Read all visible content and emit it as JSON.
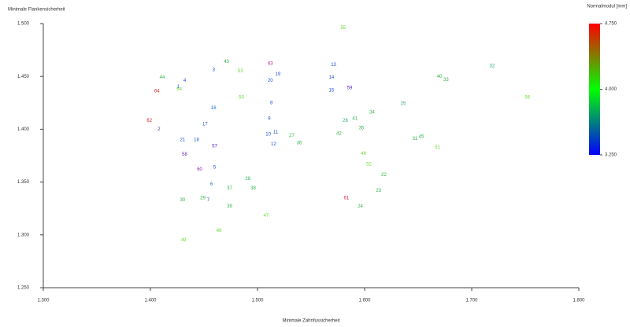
{
  "chart_data": {
    "type": "scatter",
    "xlabel": "Minimale Zahnfussicherheit",
    "ylabel": "Minimale Flankensicherheit",
    "xlim": [
      1.3,
      1.8
    ],
    "ylim": [
      1.25,
      1.5
    ],
    "xticks": [
      {
        "value": 1.3,
        "label": "1.300"
      },
      {
        "value": 1.4,
        "label": "1.400"
      },
      {
        "value": 1.5,
        "label": "1.500"
      },
      {
        "value": 1.6,
        "label": "1.600"
      },
      {
        "value": 1.7,
        "label": "1.700"
      },
      {
        "value": 1.8,
        "label": "1.800"
      }
    ],
    "yticks": [
      {
        "value": 1.25,
        "label": "1.250"
      },
      {
        "value": 1.3,
        "label": "1.300"
      },
      {
        "value": 1.35,
        "label": "1.350"
      },
      {
        "value": 1.4,
        "label": "1.400"
      },
      {
        "value": 1.45,
        "label": "1.450"
      },
      {
        "value": 1.5,
        "label": "1.500"
      }
    ],
    "labels": [
      "55",
      "43",
      "63",
      "3",
      "53",
      "13",
      "32",
      "19",
      "20",
      "14",
      "40",
      "33",
      "44",
      "4",
      "1",
      "54",
      "64",
      "15",
      "59",
      "50",
      "8",
      "25",
      "56",
      "16",
      "34",
      "62",
      "9",
      "41",
      "26",
      "17",
      "35",
      "2",
      "11",
      "10",
      "42",
      "27",
      "31",
      "45",
      "21",
      "18",
      "36",
      "12",
      "57",
      "51",
      "46",
      "58",
      "52",
      "5",
      "60",
      "22",
      "28",
      "6",
      "37",
      "38",
      "23",
      "61",
      "29",
      "7",
      "30",
      "39",
      "24",
      "47",
      "48",
      "49"
    ],
    "x": [
      1.58,
      1.471,
      1.512,
      1.459,
      1.484,
      1.571,
      1.719,
      1.519,
      1.512,
      1.569,
      1.67,
      1.676,
      1.411,
      1.432,
      1.426,
      1.427,
      1.406,
      1.569,
      1.586,
      1.485,
      1.513,
      1.636,
      1.752,
      1.459,
      1.607,
      1.399,
      1.511,
      1.591,
      1.582,
      1.451,
      1.597,
      1.408,
      1.517,
      1.51,
      1.576,
      1.532,
      1.647,
      1.653,
      1.43,
      1.443,
      1.539,
      1.515,
      1.46,
      1.668,
      1.599,
      1.432,
      1.604,
      1.46,
      1.446,
      1.618,
      1.491,
      1.457,
      1.474,
      1.496,
      1.613,
      1.583,
      1.449,
      1.454,
      1.43,
      1.474,
      1.596,
      1.508,
      1.464,
      1.431
    ],
    "y": [
      1.496,
      1.464,
      1.462,
      1.456,
      1.455,
      1.461,
      1.46,
      1.452,
      1.446,
      1.449,
      1.45,
      1.447,
      1.449,
      1.446,
      1.44,
      1.438,
      1.436,
      1.437,
      1.439,
      1.43,
      1.425,
      1.424,
      1.43,
      1.42,
      1.416,
      1.408,
      1.41,
      1.41,
      1.408,
      1.405,
      1.401,
      1.4,
      1.397,
      1.395,
      1.396,
      1.394,
      1.391,
      1.393,
      1.39,
      1.39,
      1.387,
      1.386,
      1.384,
      1.383,
      1.377,
      1.376,
      1.367,
      1.364,
      1.362,
      1.357,
      1.353,
      1.348,
      1.344,
      1.344,
      1.342,
      1.335,
      1.335,
      1.333,
      1.333,
      1.327,
      1.327,
      1.318,
      1.304,
      1.295
    ],
    "colors": [
      "#66dd33",
      "#2db34a",
      "#c0209a",
      "#1f4fd8",
      "#66dd33",
      "#1f4fd8",
      "#25a878",
      "#1f4fd8",
      "#1f4fd8",
      "#1f4fd8",
      "#2db34a",
      "#2db34a",
      "#2db34a",
      "#1f4fd8",
      "#1f4fd8",
      "#66dd33",
      "#e02020",
      "#1f4fd8",
      "#5a20c0",
      "#66dd33",
      "#1f4fd8",
      "#25a878",
      "#66dd33",
      "#1f6fc8",
      "#2db34a",
      "#d02030",
      "#1f4fd8",
      "#2db34a",
      "#25a878",
      "#1f4fd8",
      "#2db34a",
      "#3a30c8",
      "#1f4fd8",
      "#1f4fd8",
      "#2db34a",
      "#2db34a",
      "#2db34a",
      "#2db34a",
      "#1f4fd8",
      "#1f4fd8",
      "#2db34a",
      "#1f4fd8",
      "#5a20c0",
      "#66dd33",
      "#66dd33",
      "#5a20c0",
      "#66dd33",
      "#1f4fd8",
      "#8a20b0",
      "#2db34a",
      "#2db34a",
      "#1f6fc8",
      "#2db34a",
      "#2db34a",
      "#2db34a",
      "#d02040",
      "#2db34a",
      "#1f4fd8",
      "#2db34a",
      "#2db34a",
      "#2db34a",
      "#66dd33",
      "#66dd33",
      "#66dd33"
    ],
    "colorbar": {
      "title": "Normalmodul [mm]",
      "lim": [
        3.25,
        4.75
      ],
      "ticks": [
        {
          "value": 4.75,
          "label": "4.750"
        },
        {
          "value": 4.0,
          "label": "4.000"
        },
        {
          "value": 3.25,
          "label": "3.250"
        }
      ],
      "colors": [
        "#0000ff",
        "#00ff00",
        "#ff0000"
      ]
    }
  }
}
